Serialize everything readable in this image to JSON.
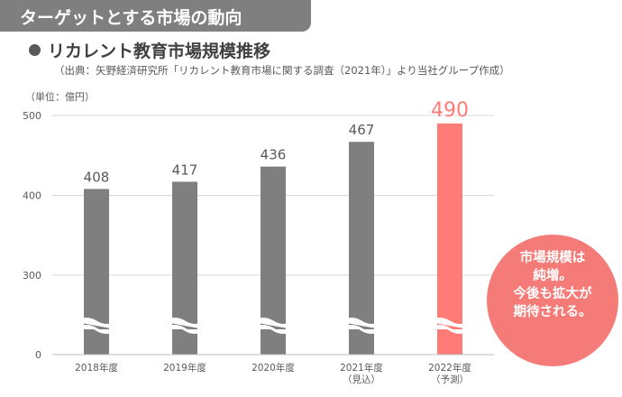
{
  "header": {
    "title": "ターゲットとする市場の動向",
    "subtitle": "リカレント教育市場規模推移",
    "source": "（出典：矢野経済研究所「リカレント教育市場に関する調査（2021年）」より当社グループ作成）",
    "unit": "（単位：億円）"
  },
  "callout": {
    "lines": [
      "市場規模は",
      "純増。",
      "今後も拡大が",
      "期待される。"
    ]
  },
  "colors": {
    "bar": "#7f7f7f",
    "highlight": "#fe7b78",
    "callout": "#f47b77",
    "header": "#7f7f7f"
  },
  "chart_data": {
    "type": "bar",
    "categories": [
      "2018年度",
      "2019年度",
      "2020年度",
      "2021年度\n（見込）",
      "2022年度\n（予測）"
    ],
    "values": [
      408,
      417,
      436,
      467,
      490
    ],
    "highlight_index": 4,
    "yticks": [
      0,
      300,
      400,
      500
    ],
    "ylim": [
      0,
      500
    ],
    "axis_break": true,
    "grid": true,
    "ylabel": "（単位：億円）",
    "title": "リカレント教育市場規模推移"
  }
}
